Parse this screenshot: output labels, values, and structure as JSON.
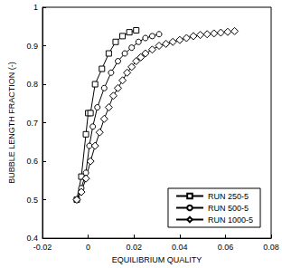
{
  "chart_data": {
    "type": "line",
    "x_label": "EQUILIBRIUM QUALITY",
    "y_label": "BUBBLE LENGTH FRACTION (-)",
    "xlim": [
      -0.02,
      0.08
    ],
    "xticks": [
      -0.02,
      0,
      0.02,
      0.04,
      0.06,
      0.08
    ],
    "ylim": [
      0.4,
      1
    ],
    "yticks": [
      0.4,
      0.5,
      0.6,
      0.7,
      0.8,
      0.9,
      1
    ],
    "grid": false,
    "legend": "lower right",
    "series": [
      {
        "name": "RUN 250-5",
        "color": "#000000",
        "marker": "square",
        "x": [
          -0.005,
          -0.003,
          -0.001,
          0.0,
          0.001,
          0.003,
          0.006,
          0.009,
          0.012,
          0.015,
          0.018,
          0.021
        ],
        "values": [
          0.5,
          0.56,
          0.67,
          0.725,
          0.725,
          0.8,
          0.84,
          0.88,
          0.91,
          0.925,
          0.935,
          0.94
        ]
      },
      {
        "name": "RUN 500-5",
        "color": "#000000",
        "marker": "circle",
        "x": [
          -0.005,
          -0.003,
          -0.001,
          0.0005,
          0.002,
          0.004,
          0.007,
          0.01,
          0.013,
          0.016,
          0.019,
          0.022,
          0.025,
          0.028,
          0.031
        ],
        "values": [
          0.5,
          0.53,
          0.57,
          0.64,
          0.69,
          0.74,
          0.79,
          0.83,
          0.86,
          0.88,
          0.895,
          0.91,
          0.92,
          0.925,
          0.93
        ]
      },
      {
        "name": "RUN 1000-5",
        "color": "#000000",
        "marker": "diamond",
        "x": [
          -0.005,
          -0.003,
          -0.001,
          0.001,
          0.003,
          0.005,
          0.007,
          0.009,
          0.011,
          0.013,
          0.015,
          0.017,
          0.019,
          0.021,
          0.023,
          0.025,
          0.028,
          0.031,
          0.034,
          0.037,
          0.04,
          0.043,
          0.046,
          0.049,
          0.052,
          0.055,
          0.058,
          0.061,
          0.064
        ],
        "values": [
          0.5,
          0.52,
          0.555,
          0.6,
          0.64,
          0.675,
          0.71,
          0.74,
          0.77,
          0.79,
          0.81,
          0.83,
          0.845,
          0.86,
          0.87,
          0.88,
          0.89,
          0.9,
          0.905,
          0.91,
          0.915,
          0.92,
          0.925,
          0.928,
          0.93,
          0.932,
          0.934,
          0.936,
          0.938
        ]
      }
    ]
  }
}
